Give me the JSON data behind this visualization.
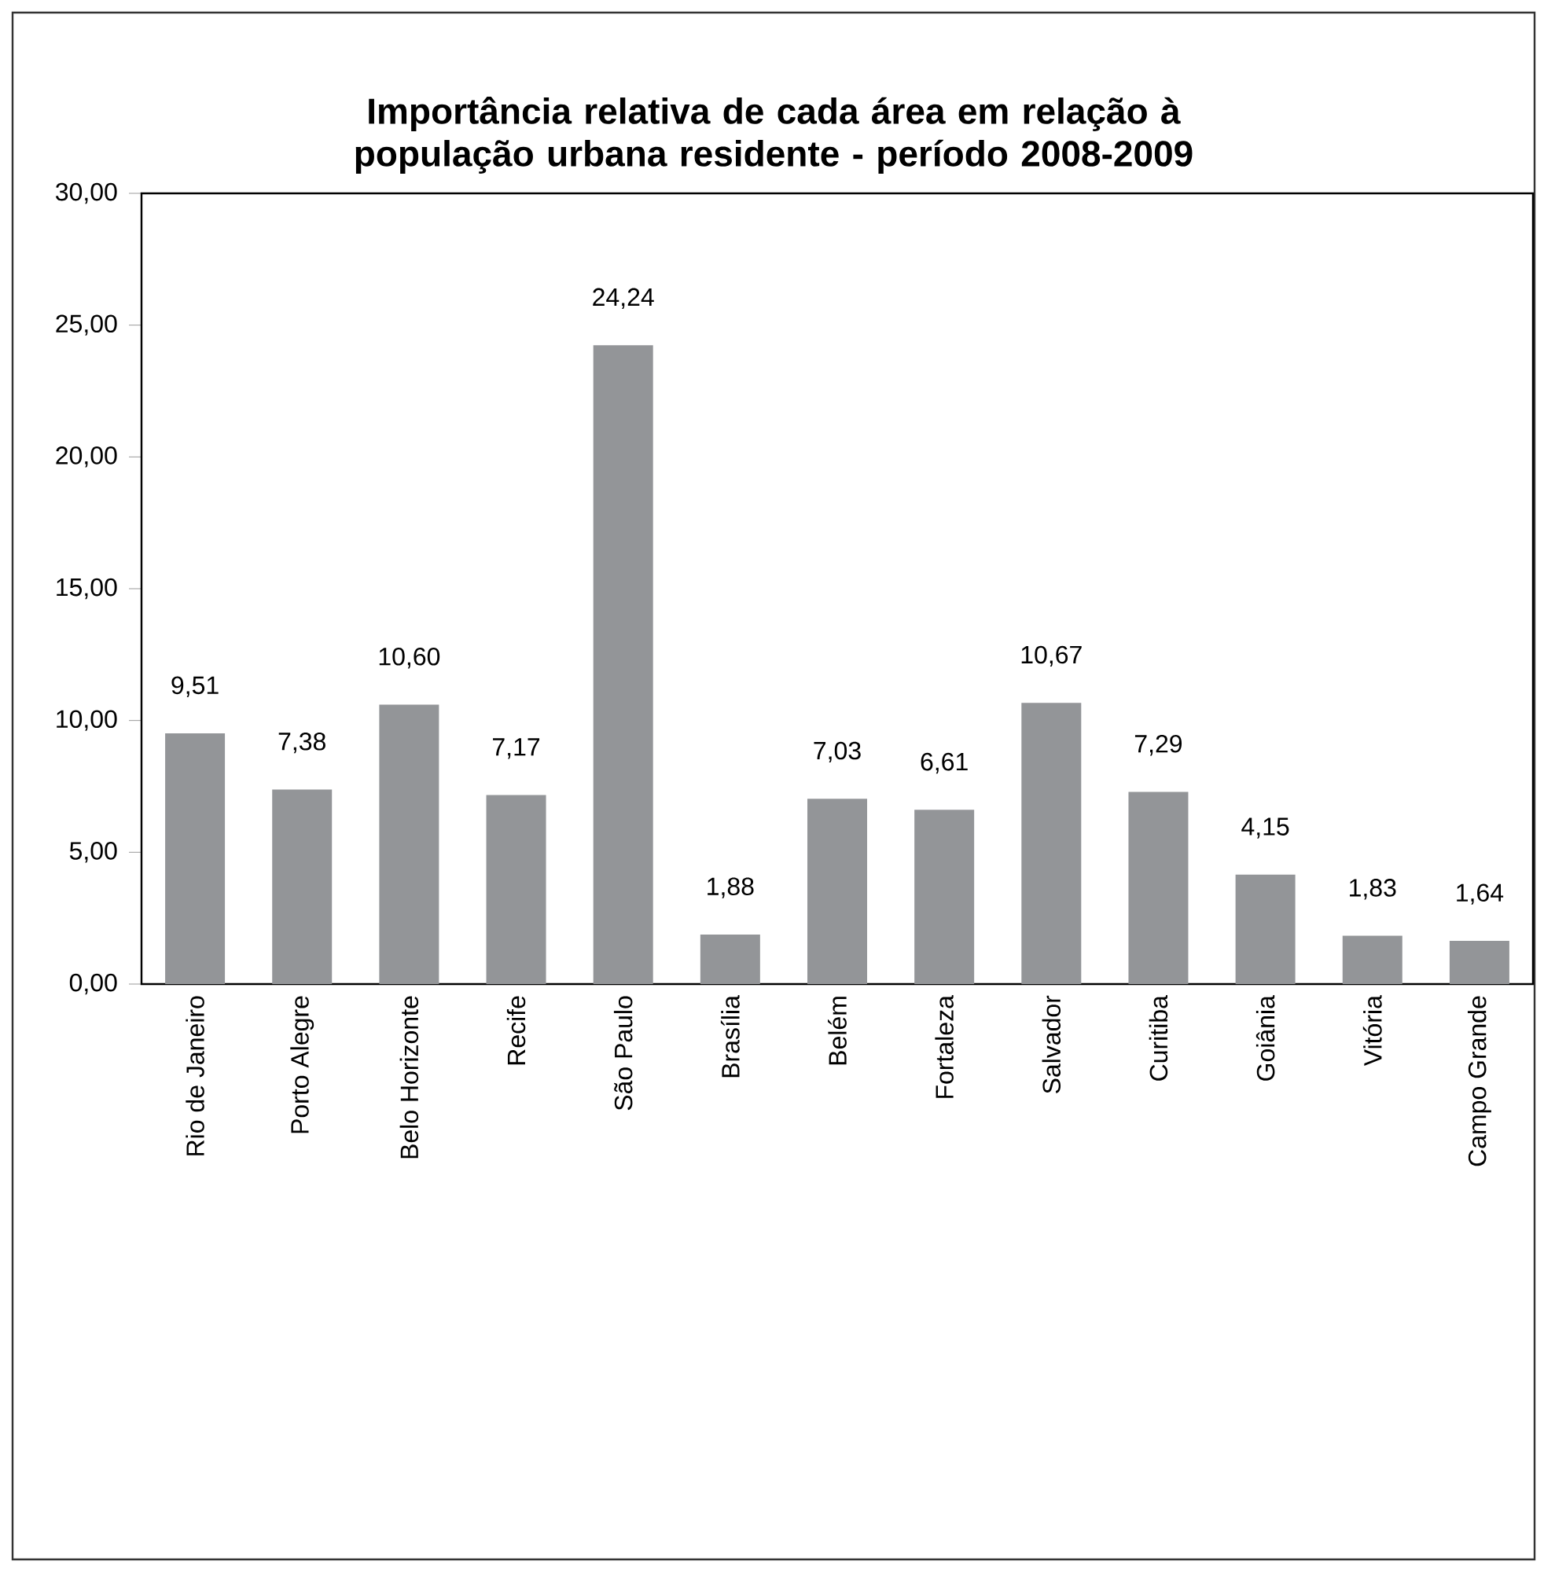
{
  "chart_data": {
    "type": "bar",
    "title": "Importância relativa de cada área em relação à população urbana residente - período 2008-2009",
    "categories": [
      "Rio de Janeiro",
      "Porto Alegre",
      "Belo Horizonte",
      "Recife",
      "São Paulo",
      "Brasília",
      "Belém",
      "Fortaleza",
      "Salvador",
      "Curitiba",
      "Goiânia",
      "Vitória",
      "Campo Grande"
    ],
    "values": [
      9.51,
      7.38,
      10.6,
      7.17,
      24.24,
      1.88,
      7.03,
      6.61,
      10.67,
      7.29,
      4.15,
      1.83,
      1.64
    ],
    "value_labels": [
      "9,51",
      "7,38",
      "10,60",
      "7,17",
      "24,24",
      "1,88",
      "7,03",
      "6,61",
      "10,67",
      "7,29",
      "4,15",
      "1,83",
      "1,64"
    ],
    "color": "#939598",
    "ylim": [
      0,
      30
    ],
    "yticks": [
      {
        "value": 0,
        "label": "0,00"
      },
      {
        "value": 5,
        "label": "5,00"
      },
      {
        "value": 10,
        "label": "10,00"
      },
      {
        "value": 15,
        "label": "15,00"
      },
      {
        "value": 20,
        "label": "20,00"
      },
      {
        "value": 25,
        "label": "25,00"
      },
      {
        "value": 30,
        "label": "30,00"
      }
    ],
    "grid": false
  }
}
